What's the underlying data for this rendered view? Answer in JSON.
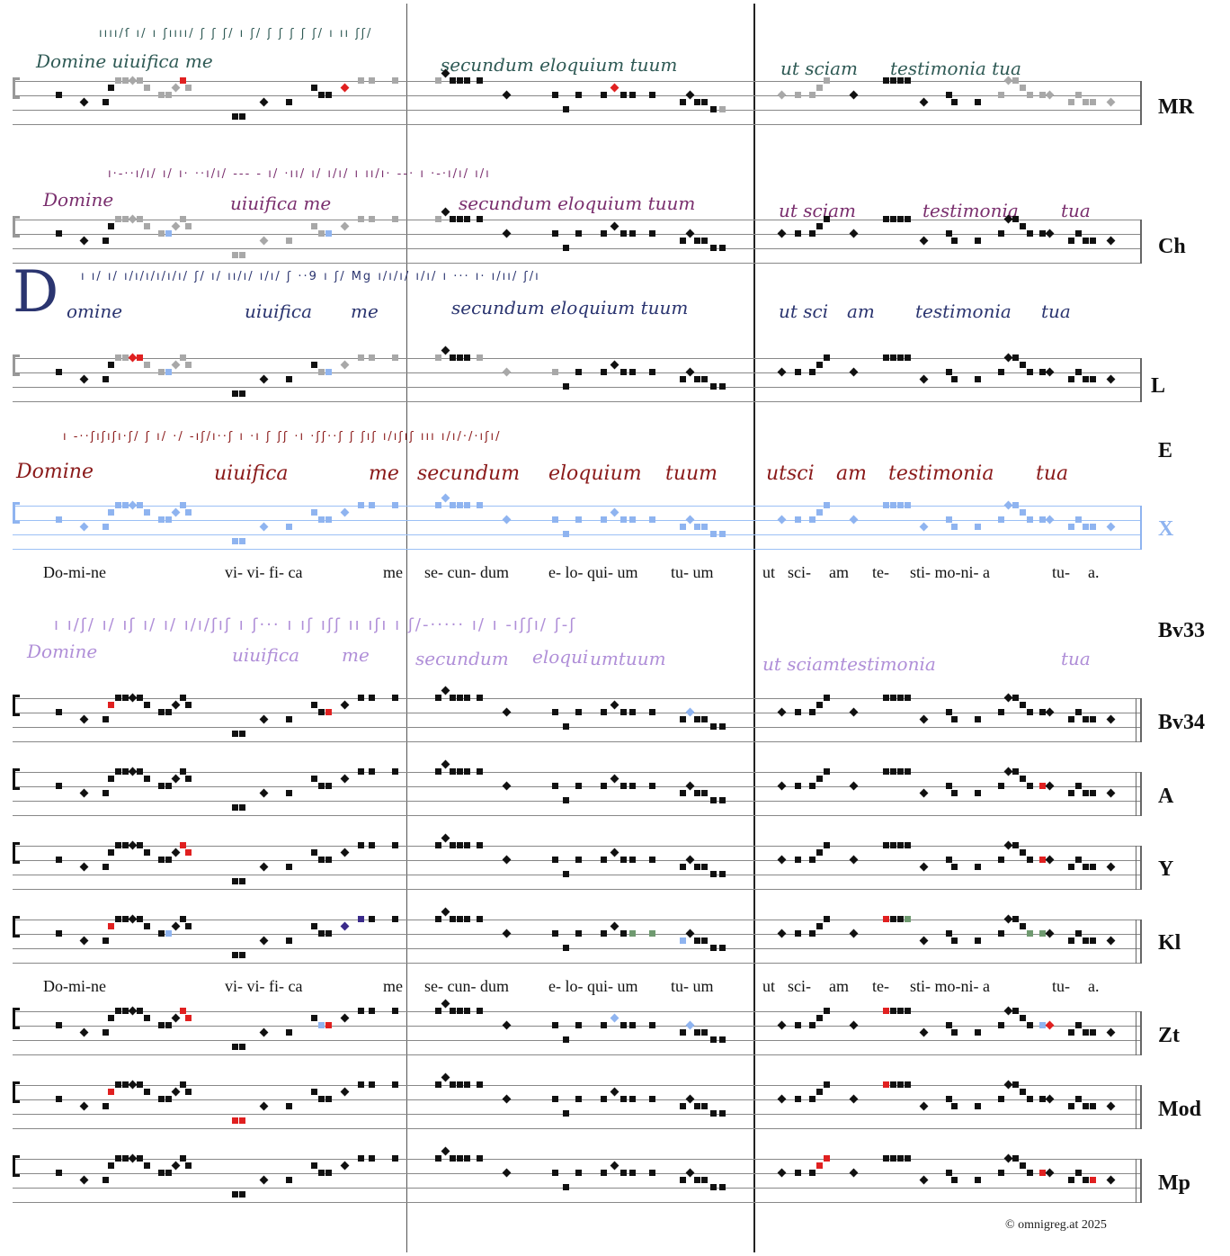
{
  "sigla": [
    {
      "id": "MR",
      "label": "MR"
    },
    {
      "id": "Ch",
      "label": "Ch"
    },
    {
      "id": "L",
      "label": "L"
    },
    {
      "id": "E",
      "label": "E"
    },
    {
      "id": "X",
      "label": "X"
    },
    {
      "id": "Bv33",
      "label": "Bv33"
    },
    {
      "id": "Bv34",
      "label": "Bv34"
    },
    {
      "id": "A",
      "label": "A"
    },
    {
      "id": "Y",
      "label": "Y"
    },
    {
      "id": "Kl",
      "label": "Kl"
    },
    {
      "id": "Zt",
      "label": "Zt"
    },
    {
      "id": "Mod",
      "label": "Mod"
    },
    {
      "id": "Mp",
      "label": "Mp"
    }
  ],
  "lyrics_top": [
    "Do-mi-ne",
    "vi- vi- fi- ca",
    "me",
    "se- cun- dum",
    "e- lo- qui- um",
    "tu- um",
    "ut",
    "sci-",
    "am",
    "te-",
    "sti- mo-ni- a",
    "tu-",
    "a."
  ],
  "lyrics_bottom": [
    "Do-mi-ne",
    "vi- vi- fi- ca",
    "me",
    "se- cun- dum",
    "e- lo- qui- um",
    "tu- um",
    "ut",
    "sci-",
    "am",
    "te-",
    "sti- mo-ni- a",
    "tu-",
    "a."
  ],
  "manuscripts": {
    "MR": {
      "color": "#2f5a55",
      "words": [
        "Domine uiuifica me",
        "secundum eloquium tuum",
        "ut sciam",
        "testimonia tua"
      ]
    },
    "Ch": {
      "color": "#7a2f6e",
      "words": [
        "Domine",
        "uiuifica me",
        "secundum eloquium tuum",
        "ut sciam",
        "testimonia",
        "tua"
      ]
    },
    "L": {
      "color": "#2b3570",
      "initial": "D",
      "words": [
        "omine",
        "uiuifica",
        "me",
        "secundum eloquium tuum",
        "ut sci",
        "am",
        "testimonia",
        "tua"
      ]
    },
    "E": {
      "color": "#8a1a1a",
      "words": [
        "Domine",
        "uiuifica",
        "me",
        "secundum",
        "eloquium",
        "tuum",
        "utsci",
        "am",
        "testimonia",
        "tua"
      ]
    },
    "Bv33": {
      "color": "#b08fd8",
      "words": [
        "Domine",
        "uiuifica",
        "me",
        "secundum",
        "eloqui",
        "umtuum",
        "ut sciamtestimonia",
        "tua"
      ]
    }
  },
  "colors": {
    "black": "#111111",
    "gray": "#a8a8a8",
    "red": "#e02020",
    "blue": "#8fb4f0",
    "purple": "#3a2a8a",
    "green": "#6f9a70"
  },
  "copyright": "© omnigreg.at    2025"
}
